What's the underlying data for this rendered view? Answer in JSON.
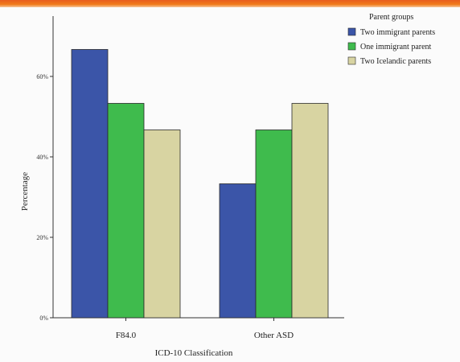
{
  "chart_data": {
    "type": "bar",
    "categories": [
      "F84.0",
      "Other ASD"
    ],
    "series": [
      {
        "name": "Two immigrant parents",
        "values": [
          66.7,
          33.3
        ],
        "color": "#3b55a8"
      },
      {
        "name": "One immigrant parent",
        "values": [
          53.3,
          46.7
        ],
        "color": "#3fbb4d"
      },
      {
        "name": "Two Icelandic parents",
        "values": [
          46.7,
          53.3
        ],
        "color": "#d8d4a2"
      }
    ],
    "title": "",
    "xlabel": "ICD-10 Classification",
    "ylabel": "Percentage",
    "ylim": [
      0,
      75
    ],
    "yticks": [
      {
        "value": 0,
        "label": "0%"
      },
      {
        "value": 20,
        "label": "20%"
      },
      {
        "value": 40,
        "label": "40%"
      },
      {
        "value": 60,
        "label": "60%"
      }
    ],
    "legend_title": "Parent groups",
    "legend_position": "top-right",
    "grid": false
  },
  "colors": {
    "header_accent": "#ef6c1c",
    "bar_outline": "#2a2a2a"
  }
}
